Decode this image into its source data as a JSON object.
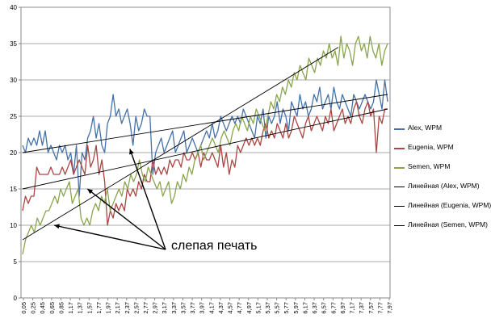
{
  "chart_data": {
    "type": "line",
    "title": "",
    "xlabel": "",
    "ylabel": "",
    "ylim": [
      0,
      40
    ],
    "yticks": [
      0,
      5,
      10,
      15,
      20,
      25,
      30,
      35,
      40
    ],
    "xtick_labels": [
      "0,05",
      "0,25",
      "0,45",
      "0,65",
      "0,85",
      "1,17",
      "1,37",
      "1,57",
      "1,77",
      "1,97",
      "2,17",
      "2,37",
      "2,57",
      "2,77",
      "2,97",
      "3,17",
      "3,37",
      "3,57",
      "3,77",
      "3,97",
      "4,17",
      "4,37",
      "4,57",
      "4,77",
      "4,97",
      "5,17",
      "5,37",
      "5,57",
      "5,77",
      "5,97",
      "6,17",
      "6,37",
      "6,57",
      "6,77",
      "6,97",
      "7,17",
      "7,37",
      "7,57",
      "7,77",
      "7,97"
    ],
    "grid": true,
    "legend_position": "right",
    "series": [
      {
        "name": "Alex, WPM",
        "color": "#4572A7",
        "values": [
          21,
          20,
          22,
          21,
          22,
          21,
          23,
          21,
          23,
          20,
          21,
          20,
          19,
          21,
          20,
          21,
          19,
          20,
          17,
          21,
          14,
          20,
          19,
          22,
          23,
          25,
          22,
          24,
          21,
          20,
          24,
          25,
          28,
          25,
          26,
          24,
          25,
          26,
          24,
          21,
          25,
          23,
          24,
          26,
          25,
          25,
          17,
          20,
          21,
          22,
          20,
          21,
          22,
          23,
          20,
          21,
          22,
          23,
          20,
          21,
          22,
          21,
          20,
          21,
          22,
          23,
          22,
          24,
          22,
          23,
          25,
          24,
          23,
          24,
          25,
          24,
          25,
          24,
          26,
          25,
          24,
          23,
          22,
          25,
          24,
          26,
          22,
          25,
          24,
          25,
          27,
          24,
          26,
          25,
          23,
          27,
          26,
          25,
          28,
          26,
          27,
          25,
          26,
          28,
          27,
          29,
          26,
          27,
          28,
          26,
          29,
          27,
          26,
          28,
          27,
          26,
          25,
          28,
          27,
          26,
          27,
          28,
          27,
          26,
          27,
          30,
          28,
          26,
          30,
          27
        ]
      },
      {
        "name": "Eugenia, WPM",
        "color": "#AA4643",
        "values": [
          12,
          14,
          13,
          14,
          14,
          18,
          17,
          17,
          17,
          17,
          18,
          17,
          17,
          17,
          18,
          17,
          18,
          19,
          17,
          18,
          19,
          18,
          17,
          21,
          18,
          19,
          21,
          17,
          19,
          16,
          10,
          12,
          11,
          13,
          12,
          13,
          12,
          15,
          14,
          15,
          14,
          16,
          15,
          17,
          16,
          16,
          19,
          17,
          18,
          17,
          18,
          17,
          19,
          18,
          19,
          19,
          18,
          20,
          19,
          19,
          20,
          19,
          20,
          18,
          20,
          19,
          19,
          20,
          19,
          18,
          21,
          18,
          20,
          17,
          19,
          18,
          21,
          20,
          21,
          22,
          21,
          22,
          21,
          22,
          21,
          23,
          24,
          22,
          23,
          22,
          24,
          23,
          22,
          24,
          22,
          23,
          25,
          24,
          23,
          22,
          24,
          25,
          23,
          24,
          25,
          24,
          23,
          25,
          24,
          26,
          23,
          24,
          25,
          26,
          24,
          25,
          24,
          26,
          27,
          25,
          24,
          26,
          27,
          25,
          26,
          20,
          25,
          24,
          26,
          26
        ]
      },
      {
        "name": "Semen, WPM",
        "color": "#89A54E",
        "values": [
          6,
          8,
          9,
          10,
          9,
          11,
          10,
          11,
          12,
          12,
          13,
          14,
          13,
          15,
          14,
          15,
          16,
          13,
          14,
          15,
          11,
          10,
          11,
          10,
          12,
          13,
          12,
          14,
          13,
          15,
          12,
          13,
          14,
          15,
          14,
          16,
          15,
          17,
          16,
          17,
          19,
          17,
          16,
          18,
          17,
          16,
          15,
          16,
          14,
          15,
          16,
          13,
          14,
          16,
          15,
          17,
          16,
          18,
          17,
          19,
          20,
          21,
          19,
          20,
          21,
          22,
          21,
          20,
          22,
          23,
          22,
          21,
          23,
          24,
          23,
          25,
          24,
          23,
          25,
          24,
          26,
          25,
          24,
          23,
          25,
          27,
          26,
          28,
          27,
          29,
          28,
          30,
          29,
          31,
          30,
          32,
          31,
          30,
          33,
          32,
          31,
          33,
          32,
          34,
          33,
          35,
          33,
          34,
          32,
          36,
          33,
          35,
          34,
          32,
          35,
          36,
          34,
          35,
          33,
          36,
          34,
          33,
          35,
          32,
          34,
          35
        ]
      },
      {
        "name": "Линейная (Alex, WPM)",
        "color": "#000000",
        "trend": [
          20,
          28
        ]
      },
      {
        "name": "Линейная (Eugenia, WPM)",
        "color": "#000000",
        "trend": [
          15,
          26
        ]
      },
      {
        "name": "Линейная (Semen, WPM)",
        "color": "#000000",
        "trend": [
          8,
          34.5
        ]
      }
    ],
    "annotation": {
      "text": "слепая печать",
      "arrow_targets": [
        [
          0.09,
          10
        ],
        [
          0.18,
          15
        ],
        [
          0.295,
          20.5
        ]
      ]
    }
  }
}
